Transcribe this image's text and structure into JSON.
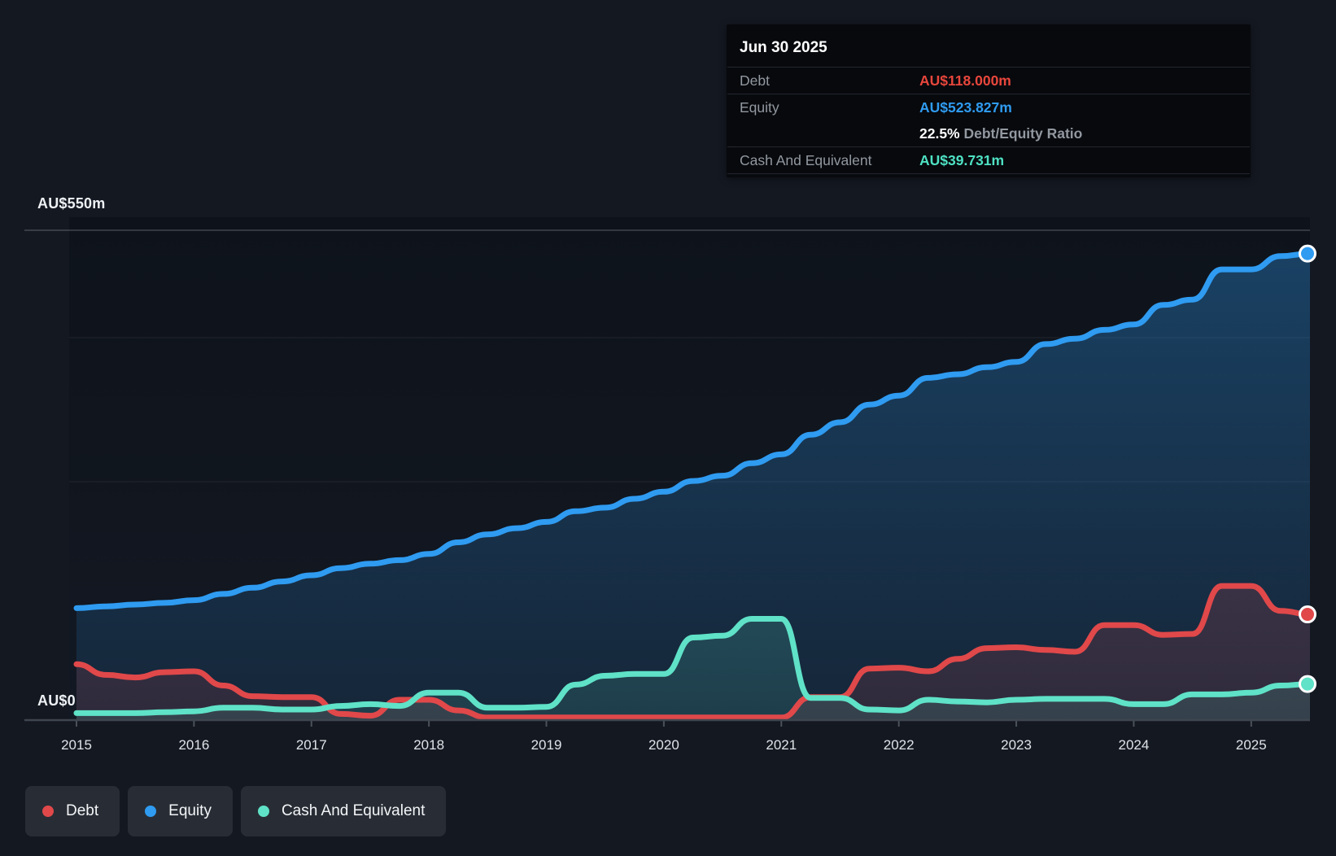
{
  "y_axis": {
    "top_label": "AU$550m",
    "bottom_label": "AU$0"
  },
  "x_axis": {
    "years": [
      "2015",
      "2016",
      "2017",
      "2018",
      "2019",
      "2020",
      "2021",
      "2022",
      "2023",
      "2024",
      "2025"
    ]
  },
  "tooltip": {
    "date": "Jun 30 2025",
    "rows": [
      {
        "kind": "value",
        "label": "Debt",
        "value": "AU$118.000m",
        "color_key": "debt",
        "divider_after": true
      },
      {
        "kind": "value",
        "label": "Equity",
        "value": "AU$523.827m",
        "color_key": "equity",
        "divider_after": false
      },
      {
        "kind": "ratio",
        "label": "",
        "value": "22.5%",
        "suffix": "Debt/Equity Ratio",
        "divider_after": true
      },
      {
        "kind": "value",
        "label": "Cash And Equivalent",
        "value": "AU$39.731m",
        "color_key": "cash",
        "divider_after": true
      }
    ]
  },
  "legend": [
    {
      "label": "Debt",
      "color_key": "debt"
    },
    {
      "label": "Equity",
      "color_key": "equity"
    },
    {
      "label": "Cash And Equivalent",
      "color_key": "cash"
    }
  ],
  "colors": {
    "debt": "#e0484a",
    "equity": "#2f9bf1",
    "cash": "#5fe2c7",
    "debt_value_text": "#e8463c",
    "equity_value_text": "#2f9bf0",
    "cash_value_text": "#4ee1c3",
    "grid_major": "rgba(255,255,255,0.16)",
    "grid_minor": "rgba(255,255,255,0.05)",
    "axis_line": "#3f454e",
    "tick": "#4a5159"
  },
  "chart_data": {
    "type": "area",
    "title": "",
    "xlabel": "Year",
    "ylabel": "AU$ millions",
    "x_range": [
      2015.0,
      2025.5
    ],
    "ylim": [
      0,
      550
    ],
    "grid": "horizontal-faint",
    "legend_position": "bottom-left",
    "x": [
      2015.0,
      2015.25,
      2015.5,
      2015.75,
      2016.0,
      2016.25,
      2016.5,
      2016.75,
      2017.0,
      2017.25,
      2017.5,
      2017.75,
      2018.0,
      2018.25,
      2018.5,
      2018.75,
      2019.0,
      2019.25,
      2019.5,
      2019.75,
      2020.0,
      2020.25,
      2020.5,
      2020.75,
      2021.0,
      2021.25,
      2021.5,
      2021.75,
      2022.0,
      2022.25,
      2022.5,
      2022.75,
      2023.0,
      2023.25,
      2023.5,
      2023.75,
      2024.0,
      2024.25,
      2024.5,
      2024.75,
      2025.0,
      2025.25,
      2025.5
    ],
    "series": [
      {
        "name": "Equity",
        "color_key": "equity",
        "end_label": "AU$523.827m",
        "values": [
          125,
          127,
          129,
          131,
          134,
          141,
          148,
          155,
          162,
          170,
          175,
          179,
          186,
          199,
          208,
          215,
          222,
          234,
          238,
          248,
          256,
          268,
          274,
          288,
          298,
          320,
          334,
          354,
          364,
          384,
          388,
          396,
          402,
          422,
          428,
          438,
          444,
          466,
          472,
          506,
          506,
          521,
          523.827
        ]
      },
      {
        "name": "Debt",
        "color_key": "debt",
        "end_label": "AU$118.000m",
        "values": [
          62,
          50,
          47,
          53,
          54,
          38,
          26,
          25,
          25,
          6,
          4,
          22,
          22,
          10,
          2,
          2,
          2,
          2,
          2,
          2,
          2,
          2,
          2,
          2,
          2,
          25,
          25,
          57,
          58,
          54,
          68,
          80,
          81,
          78,
          76,
          106,
          106,
          95,
          96,
          150,
          150,
          122,
          118
        ]
      },
      {
        "name": "Cash And Equivalent",
        "color_key": "cash",
        "end_label": "AU$39.731m",
        "values": [
          7,
          7,
          7,
          8,
          9,
          13,
          13,
          11,
          11,
          15,
          17,
          15,
          30,
          30,
          13,
          13,
          14,
          39,
          49,
          51,
          51,
          92,
          94,
          113,
          113,
          24,
          24,
          11,
          10,
          22,
          20,
          19,
          22,
          23,
          23,
          23,
          17,
          17,
          28,
          28,
          30,
          38,
          39.731
        ]
      }
    ]
  }
}
